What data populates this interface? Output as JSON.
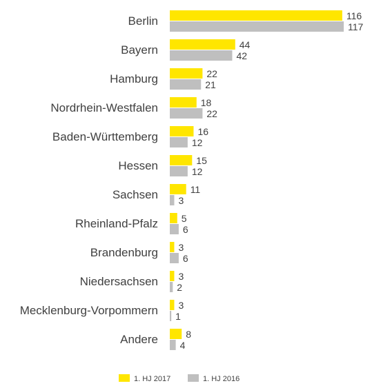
{
  "chart_data": {
    "type": "bar",
    "orientation": "horizontal",
    "categories": [
      "Berlin",
      "Bayern",
      "Hamburg",
      "Nordrhein-Westfalen",
      "Baden-Württemberg",
      "Hessen",
      "Sachsen",
      "Rheinland-Pfalz",
      "Brandenburg",
      "Niedersachsen",
      "Mecklenburg-Vorpommern",
      "Andere"
    ],
    "series": [
      {
        "name": "1. HJ 2017",
        "color": "#FFE600",
        "values": [
          116,
          44,
          22,
          18,
          16,
          15,
          11,
          5,
          3,
          3,
          3,
          8
        ]
      },
      {
        "name": "1. HJ 2016",
        "color": "#BFBFBF",
        "values": [
          117,
          42,
          21,
          22,
          12,
          12,
          3,
          6,
          6,
          2,
          1,
          4
        ]
      }
    ],
    "title": "",
    "xlabel": "",
    "ylabel": "",
    "xlim": [
      0,
      117
    ],
    "grid": false,
    "legend_position": "bottom"
  }
}
